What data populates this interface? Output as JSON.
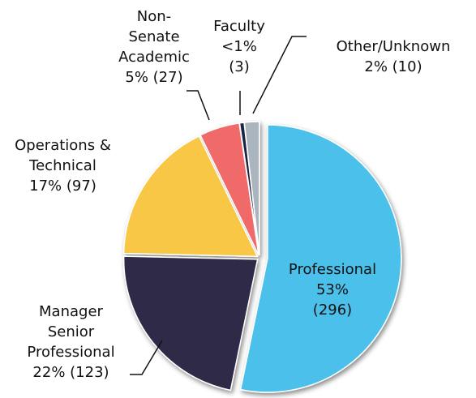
{
  "chart_data": {
    "type": "pie",
    "categories": [
      "Professional",
      "Manager Senior Professional",
      "Operations & Technical",
      "Non-Senate Academic",
      "Faculty",
      "Other/Unknown"
    ],
    "values": [
      296,
      123,
      97,
      27,
      3,
      10
    ],
    "value_labels": [
      "53% (296)",
      "22% (123)",
      "17% (97)",
      "5% (27)",
      "<1% (3)",
      "2% (10)"
    ],
    "colors": [
      "#4cc0ea",
      "#2f2b47",
      "#f7c744",
      "#f06a6a",
      "#1f2342",
      "#aab5c0"
    ]
  }
}
